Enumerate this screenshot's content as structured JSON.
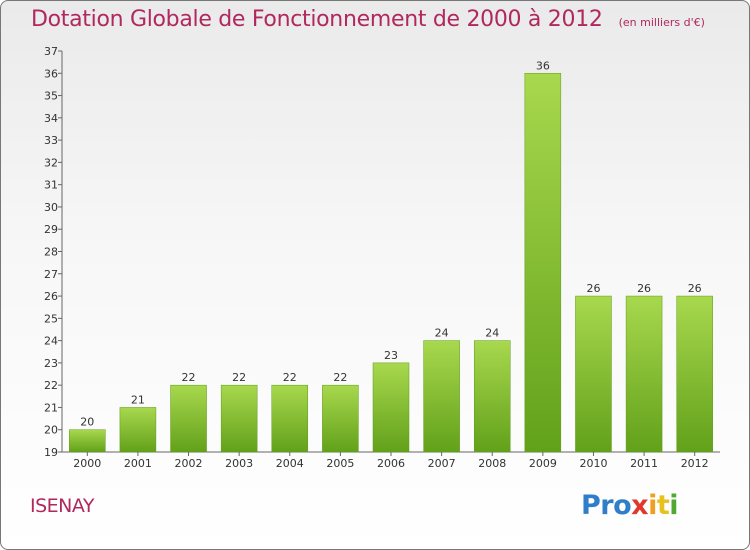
{
  "chart_data": {
    "type": "bar",
    "title": "Dotation Globale de Fonctionnement de 2000 à 2012",
    "subtitle": "(en milliers d'€)",
    "categories": [
      "2000",
      "2001",
      "2002",
      "2003",
      "2004",
      "2005",
      "2006",
      "2007",
      "2008",
      "2009",
      "2010",
      "2011",
      "2012"
    ],
    "values": [
      20,
      21,
      22,
      22,
      22,
      22,
      23,
      24,
      24,
      36,
      26,
      26,
      26
    ],
    "ylim": [
      19,
      37
    ],
    "yticks": [
      19,
      20,
      21,
      22,
      23,
      24,
      25,
      26,
      27,
      28,
      29,
      30,
      31,
      32,
      33,
      34,
      35,
      36,
      37
    ],
    "grid": false,
    "colors": {
      "bar_light": "#a8d84e",
      "bar_dark": "#62a11a",
      "title": "#b0285e"
    }
  },
  "commune": "ISENAY",
  "logo": {
    "p1": "Pro",
    "p2": "x",
    "p3": "i",
    "p4": "t",
    "p5": "i"
  }
}
